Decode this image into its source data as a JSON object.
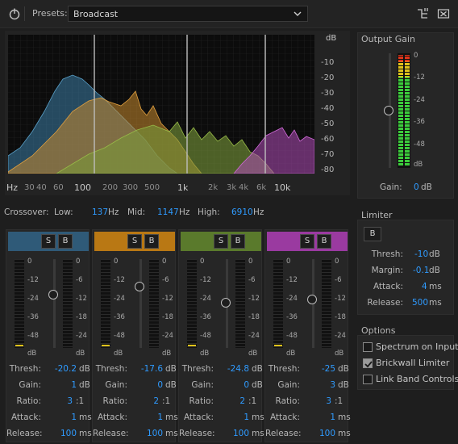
{
  "toolbar": {
    "presets_label": "Presets:",
    "preset_value": "Broadcast",
    "icons": [
      "power-icon",
      "chevron-down-icon",
      "routing-icon",
      "close-panel-icon"
    ]
  },
  "graph": {
    "db_unit": "dB",
    "db_ticks": [
      "-10",
      "-20",
      "-30",
      "-40",
      "-50",
      "-60",
      "-70",
      "-80"
    ],
    "freq_ticks_minor": [
      "30",
      "40",
      "60",
      "200",
      "300",
      "500",
      "2k",
      "3k",
      "4k",
      "6k"
    ],
    "freq_ticks_major": [
      "Hz",
      "100",
      "1k",
      "10k"
    ],
    "band_colors": [
      "#3c7ea6",
      "#c88a2d",
      "#7a9a3a",
      "#b04cb8"
    ]
  },
  "crossover": {
    "label": "Crossover:",
    "low_label": "Low:",
    "low_value": "137",
    "low_unit": "Hz",
    "mid_label": "Mid:",
    "mid_value": "1147",
    "mid_unit": "Hz",
    "high_label": "High:",
    "high_value": "6910",
    "high_unit": "Hz"
  },
  "band_common": {
    "solo_label": "S",
    "bypass_label": "B",
    "meter_scale": [
      "0",
      "-12",
      "-24",
      "-36",
      "-48",
      "dB"
    ],
    "thresh_scale": [
      "0",
      "-6",
      "-12",
      "-18",
      "-24",
      "dB"
    ],
    "labels": {
      "thresh": "Thresh:",
      "gain": "Gain:",
      "ratio": "Ratio:",
      "attack": "Attack:",
      "release": "Release:"
    },
    "units": {
      "thresh": "dB",
      "gain": "dB",
      "ratio": ":1",
      "attack": "ms",
      "release": "ms"
    }
  },
  "bands": [
    {
      "color": "#2f5a78",
      "thresh": "-20.2",
      "gain": "1",
      "ratio": "3",
      "attack": "1",
      "release": "100"
    },
    {
      "color": "#b97814",
      "thresh": "-17.6",
      "gain": "0",
      "ratio": "2",
      "attack": "1",
      "release": "100"
    },
    {
      "color": "#5a7a2c",
      "thresh": "-24.8",
      "gain": "0",
      "ratio": "2",
      "attack": "1",
      "release": "100"
    },
    {
      "color": "#9a3aa0",
      "thresh": "-25",
      "gain": "3",
      "ratio": "3",
      "attack": "1",
      "release": "100"
    }
  ],
  "output_gain": {
    "title": "Output Gain",
    "scale": [
      "0",
      "-12",
      "-24",
      "-36",
      "-48",
      "dB"
    ],
    "gain_label": "Gain:",
    "gain_value": "0",
    "gain_unit": "dB"
  },
  "limiter": {
    "title": "Limiter",
    "bypass_label": "B",
    "thresh_label": "Thresh:",
    "thresh_value": "-10",
    "thresh_unit": "dB",
    "margin_label": "Margin:",
    "margin_value": "-0.1",
    "margin_unit": "dB",
    "attack_label": "Attack:",
    "attack_value": "4",
    "attack_unit": "ms",
    "release_label": "Release:",
    "release_value": "500",
    "release_unit": "ms"
  },
  "options": {
    "title": "Options",
    "items": [
      {
        "label": "Spectrum on Input",
        "checked": false
      },
      {
        "label": "Brickwall Limiter",
        "checked": true
      },
      {
        "label": "Link Band Controls",
        "checked": false
      }
    ]
  }
}
